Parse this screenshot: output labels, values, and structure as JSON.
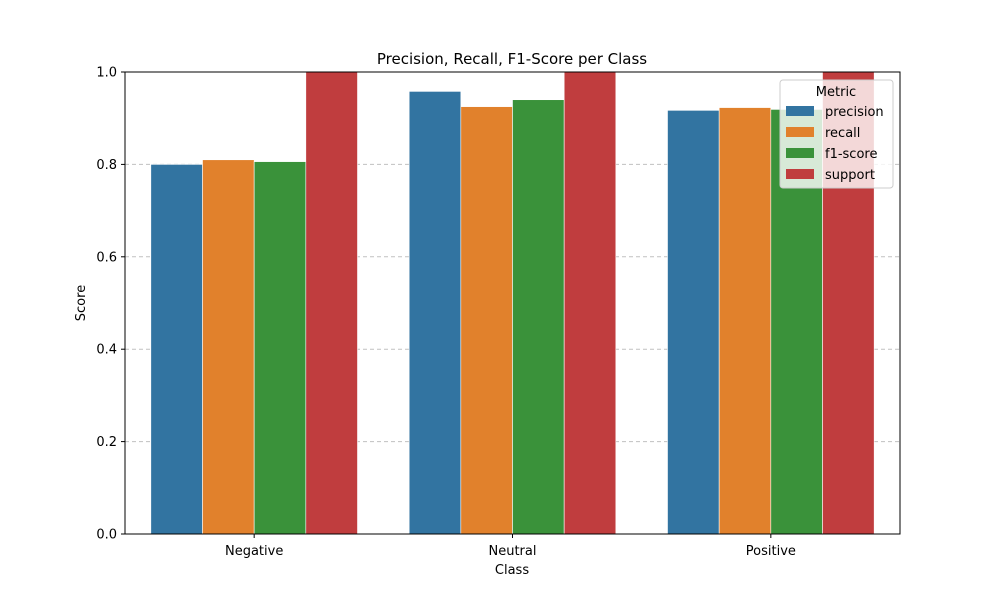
{
  "chart_data": {
    "type": "bar",
    "title": "Precision, Recall, F1-Score per Class",
    "xlabel": "Class",
    "ylabel": "Score",
    "categories": [
      "Negative",
      "Neutral",
      "Positive"
    ],
    "ylim": [
      0,
      1.0
    ],
    "yticks": [
      "0.0",
      "0.2",
      "0.4",
      "0.6",
      "0.8",
      "1.0"
    ],
    "grid": "horizontal dashed",
    "legend": {
      "title": "Metric",
      "position": "top-right"
    },
    "series": [
      {
        "name": "precision",
        "color": "#3274a1",
        "values": [
          0.8,
          0.958,
          0.917
        ]
      },
      {
        "name": "recall",
        "color": "#e1812c",
        "values": [
          0.81,
          0.925,
          0.923
        ]
      },
      {
        "name": "f1-score",
        "color": "#3a923a",
        "values": [
          0.806,
          0.94,
          0.919
        ]
      },
      {
        "name": "support",
        "color": "#c03d3e",
        "values": [
          1.0,
          1.0,
          1.0
        ]
      }
    ]
  }
}
